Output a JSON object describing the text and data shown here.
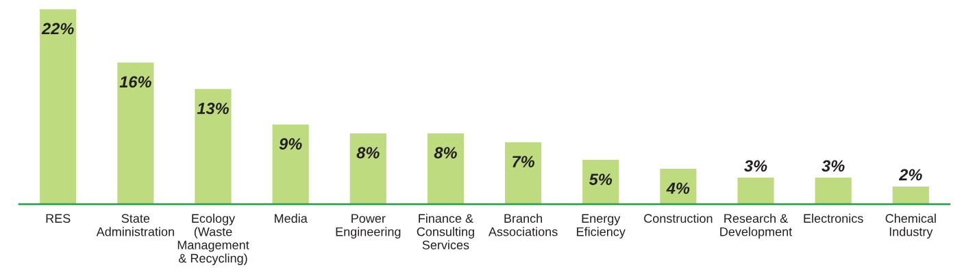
{
  "chart_data": {
    "type": "bar",
    "categories": [
      "RES",
      "State\nAdministration",
      "Ecology\n(Waste\nManagement\n& Recycling)",
      "Media",
      "Power\nEngineering",
      "Finance &\nConsulting\nServices",
      "Branch\nAssociations",
      "Energy\nEficiency",
      "Construction",
      "Research &\nDevelopment",
      "Electronics",
      "Chemical\nIndustry"
    ],
    "values": [
      22,
      16,
      13,
      9,
      8,
      8,
      7,
      5,
      4,
      3,
      3,
      2
    ],
    "value_labels": [
      "22%",
      "16%",
      "13%",
      "9%",
      "8%",
      "8%",
      "7%",
      "5%",
      "4%",
      "3%",
      "3%",
      "2%"
    ],
    "color": "#bedc7f",
    "grid": false,
    "legend": false
  }
}
